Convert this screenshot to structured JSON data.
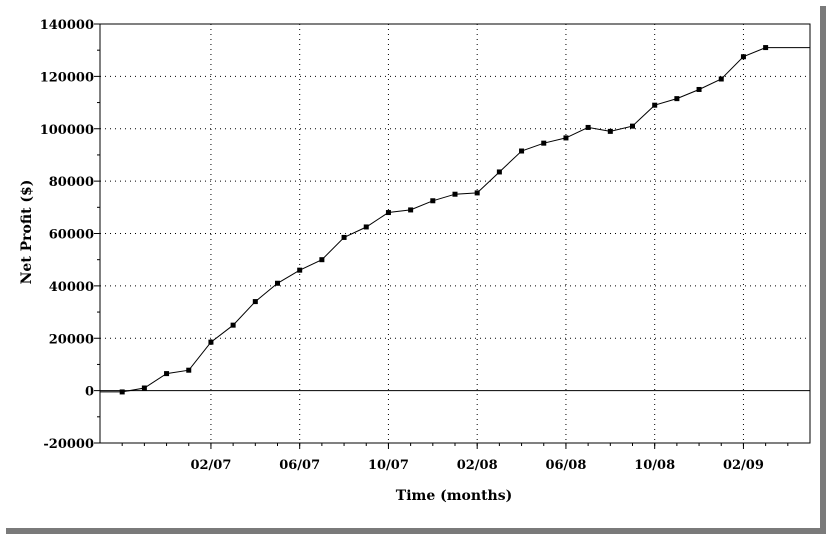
{
  "chart_data": {
    "type": "line",
    "xlabel": "Time (months)",
    "ylabel": "Net Profit ($)",
    "ylim": [
      -20000,
      140000
    ],
    "yticks": [
      -20000,
      0,
      20000,
      40000,
      60000,
      80000,
      100000,
      120000,
      140000
    ],
    "ytick_labels": [
      "-20000",
      "0",
      "20000",
      "40000",
      "60000",
      "80000",
      "100000",
      "120000",
      "140000"
    ],
    "xlim": [
      "2006-09",
      "2009-05"
    ],
    "xticks": [
      "02/07",
      "06/07",
      "10/07",
      "02/08",
      "06/08",
      "10/08",
      "02/09"
    ],
    "grid": true,
    "series": [
      {
        "x": [
          "2006-10",
          "2006-11",
          "2006-12",
          "2007-01",
          "2007-02",
          "2007-03",
          "2007-04",
          "2007-05",
          "2007-06",
          "2007-07",
          "2007-08",
          "2007-09",
          "2007-10",
          "2007-11",
          "2007-12",
          "2008-01",
          "2008-02",
          "2008-03",
          "2008-04",
          "2008-05",
          "2008-06",
          "2008-07",
          "2008-08",
          "2008-09",
          "2008-10",
          "2008-11",
          "2008-12",
          "2009-01",
          "2009-02",
          "2009-03",
          "2009-04"
        ],
        "values": [
          -500,
          1000,
          6500,
          7800,
          18500,
          25000,
          34000,
          41000,
          46000,
          50000,
          58500,
          62500,
          68000,
          69000,
          72500,
          75000,
          75500,
          83500,
          91500,
          94500,
          96500,
          100500,
          99000,
          101000,
          109000,
          111500,
          115000,
          119000,
          127500,
          131000,
          131000
        ]
      }
    ]
  }
}
